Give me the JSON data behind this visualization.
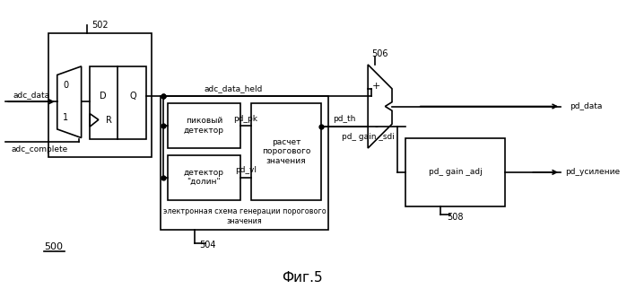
{
  "bg_color": "#ffffff",
  "line_color": "#000000",
  "fig_title": "Фиг.5",
  "label_500": "500",
  "label_502": "502",
  "label_504": "504",
  "label_506": "506",
  "label_508": "508",
  "text_adc_data": "adc_data",
  "text_adc_complete": "adc_complete",
  "text_adc_data_held": "adc_data_held",
  "text_pd_data": "pd_data",
  "text_pd_usilenie": "pd_усиление",
  "text_pd_pk": "pd_pk",
  "text_pd_vl": "pd_vl",
  "text_pd_th": "pd_th",
  "text_pd_gain_sdi": "pd_ gain _sdi",
  "text_pd_gain_adj": "pd_ gain _adj",
  "text_D": "D",
  "text_Q": "Q",
  "text_R": "R",
  "text_0": "0",
  "text_1": "1",
  "text_peak_detector": "пиковый\nдетектор",
  "text_valley_detector": "детектор\n\"долин\"",
  "text_threshold_calc": "расчет\nпорогового\nзначения",
  "text_threshold_gen": "электронная схема генерации порогового\nзначения",
  "text_plus": "+",
  "text_minus": "-"
}
